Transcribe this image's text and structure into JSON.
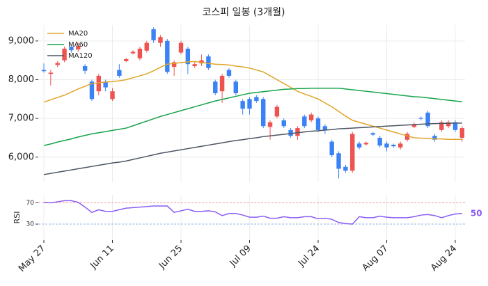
{
  "chart_data": [
    {
      "type": "candlestick",
      "title": "코스피 일봉 (3개월)",
      "categories": [
        "May 27",
        null,
        null,
        null,
        null,
        null,
        null,
        null,
        null,
        null,
        "Jun 11",
        null,
        null,
        null,
        null,
        null,
        null,
        null,
        null,
        null,
        "Jun 25",
        null,
        null,
        null,
        null,
        null,
        null,
        null,
        null,
        null,
        "Jul 09",
        null,
        null,
        null,
        null,
        null,
        null,
        null,
        null,
        null,
        "Jul 24",
        null,
        null,
        null,
        null,
        null,
        null,
        null,
        null,
        null,
        "Aug 07",
        null,
        null,
        null,
        null,
        null,
        null,
        null,
        null,
        null,
        "Aug 24",
        null
      ],
      "open": [
        8250,
        8150,
        8380,
        8500,
        8850,
        8780,
        8350,
        7950,
        7700,
        7950,
        7500,
        8250,
        8480,
        8680,
        8550,
        8750,
        9300,
        8950,
        9000,
        8330,
        8700,
        8800,
        8350,
        8420,
        8600,
        7950,
        7700,
        8250,
        7950,
        7450,
        7500,
        7550,
        7500,
        6780,
        7050,
        6950,
        6700,
        6550,
        7050,
        6950,
        7000,
        6800,
        6400,
        6100,
        5750,
        5650,
        6350,
        6330,
        6620,
        6500,
        6350,
        6320,
        6250,
        6450,
        6780,
        7010,
        7150,
        6550,
        6700,
        6800,
        6900,
        6500
      ],
      "high": [
        8420,
        8250,
        8480,
        8850,
        8900,
        8950,
        8400,
        8000,
        8150,
        8000,
        7780,
        8400,
        8560,
        8760,
        8850,
        9000,
        9350,
        9150,
        9050,
        8500,
        9000,
        8850,
        8450,
        8650,
        8650,
        8000,
        8150,
        8300,
        8000,
        7500,
        7550,
        7600,
        7550,
        6950,
        7350,
        7000,
        6750,
        6800,
        7100,
        7150,
        7050,
        6850,
        6450,
        6150,
        5800,
        6650,
        6400,
        6400,
        6650,
        6550,
        6400,
        6350,
        6400,
        6650,
        6900,
        7050,
        7200,
        6600,
        6950,
        6950,
        6950,
        6800
      ],
      "low": [
        8180,
        7850,
        8330,
        8450,
        8700,
        8720,
        8150,
        7450,
        7600,
        7700,
        7450,
        8050,
        8450,
        8650,
        8500,
        8700,
        8950,
        8850,
        8150,
        8100,
        8650,
        8150,
        8300,
        8350,
        8250,
        7600,
        7400,
        8050,
        7600,
        7100,
        7100,
        7400,
        6750,
        6450,
        7000,
        6750,
        6500,
        6450,
        6750,
        6900,
        6650,
        6600,
        6000,
        5450,
        5600,
        5600,
        6200,
        6300,
        6550,
        6250,
        6150,
        6250,
        6200,
        6400,
        6750,
        6950,
        6750,
        6400,
        6650,
        6750,
        6650,
        6400
      ],
      "close": [
        8220,
        8180,
        8430,
        8800,
        8760,
        8870,
        8230,
        7500,
        8100,
        7800,
        7700,
        8100,
        8530,
        8720,
        8800,
        8950,
        9020,
        9100,
        8200,
        8450,
        8950,
        8400,
        8400,
        8500,
        8300,
        7650,
        8100,
        8100,
        7650,
        7250,
        7250,
        7450,
        6800,
        6900,
        7300,
        6800,
        6550,
        6750,
        6800,
        7100,
        6700,
        6700,
        6050,
        5700,
        5650,
        6600,
        6250,
        6370,
        6580,
        6300,
        6250,
        6280,
        6350,
        6600,
        6850,
        6990,
        6800,
        6450,
        6900,
        6900,
        6700,
        6750
      ],
      "up_color": "#ef5350",
      "down_color": "#3b82f6",
      "series": [
        {
          "name": "MA20",
          "color": "#e0a526",
          "values": [
            7420,
            7480,
            7540,
            7600,
            7680,
            7760,
            7830,
            7900,
            7920,
            7940,
            7950,
            7970,
            8000,
            8050,
            8100,
            8150,
            8230,
            8320,
            8400,
            8420,
            8440,
            8460,
            8470,
            8450,
            8420,
            8400,
            8390,
            8380,
            8350,
            8330,
            8300,
            8250,
            8200,
            8100,
            8000,
            7900,
            7800,
            7700,
            7630,
            7570,
            7500,
            7400,
            7300,
            7180,
            7060,
            6950,
            6900,
            6850,
            6800,
            6750,
            6700,
            6650,
            6600,
            6550,
            6500,
            6490,
            6480,
            6470,
            6470,
            6460,
            6460,
            6460
          ]
        },
        {
          "name": "MA60",
          "color": "#16a34a",
          "values": [
            6300,
            6340,
            6390,
            6430,
            6470,
            6520,
            6560,
            6600,
            6630,
            6660,
            6690,
            6720,
            6750,
            6810,
            6870,
            6930,
            6990,
            7050,
            7100,
            7150,
            7200,
            7250,
            7300,
            7350,
            7400,
            7450,
            7490,
            7530,
            7570,
            7610,
            7650,
            7670,
            7690,
            7710,
            7730,
            7750,
            7760,
            7770,
            7770,
            7780,
            7780,
            7780,
            7780,
            7780,
            7760,
            7740,
            7720,
            7700,
            7680,
            7660,
            7640,
            7620,
            7600,
            7580,
            7560,
            7550,
            7530,
            7510,
            7490,
            7470,
            7450,
            7430
          ]
        },
        {
          "name": "MA120",
          "color": "#4b5563",
          "values": [
            5550,
            5580,
            5610,
            5640,
            5670,
            5700,
            5730,
            5760,
            5790,
            5820,
            5850,
            5870,
            5900,
            5940,
            5980,
            6020,
            6060,
            6100,
            6130,
            6160,
            6190,
            6220,
            6250,
            6280,
            6310,
            6340,
            6370,
            6400,
            6430,
            6450,
            6480,
            6500,
            6530,
            6550,
            6570,
            6590,
            6610,
            6630,
            6650,
            6670,
            6680,
            6700,
            6710,
            6730,
            6740,
            6750,
            6760,
            6770,
            6780,
            6790,
            6800,
            6810,
            6820,
            6830,
            6840,
            6850,
            6860,
            6865,
            6870,
            6875,
            6880,
            6880
          ]
        }
      ],
      "ylim": [
        5350,
        9410
      ],
      "yticks": [
        {
          "value": 6000,
          "label": "6,000"
        },
        {
          "value": 7000,
          "label": "7,000"
        },
        {
          "value": 8000,
          "label": "8,000"
        },
        {
          "value": 9000,
          "label": "9,000"
        }
      ],
      "grid": true,
      "legend": "upper left"
    },
    {
      "type": "line",
      "ylabel": "RSI",
      "series": [
        {
          "name": "RSI",
          "color": "#8b5cf6",
          "values": [
            71,
            70,
            72,
            74,
            74,
            71,
            62,
            52,
            57,
            54,
            54,
            57,
            60,
            61,
            62,
            63,
            64,
            64,
            64,
            52,
            55,
            58,
            54,
            54,
            55,
            53,
            46,
            50,
            50,
            47,
            43,
            43,
            45,
            41,
            41,
            44,
            42,
            42,
            44,
            44,
            40,
            41,
            39,
            33,
            31,
            30,
            44,
            42,
            42,
            45,
            43,
            42,
            42,
            42,
            44,
            47,
            48,
            46,
            42,
            46,
            49,
            50
          ]
        }
      ],
      "ylim": [
        0,
        85
      ],
      "yticks": [
        30,
        70
      ],
      "reference_lines": [
        {
          "value": 70,
          "color": "#ef9a9a"
        },
        {
          "value": 30,
          "color": "#93b4e8"
        }
      ]
    }
  ]
}
